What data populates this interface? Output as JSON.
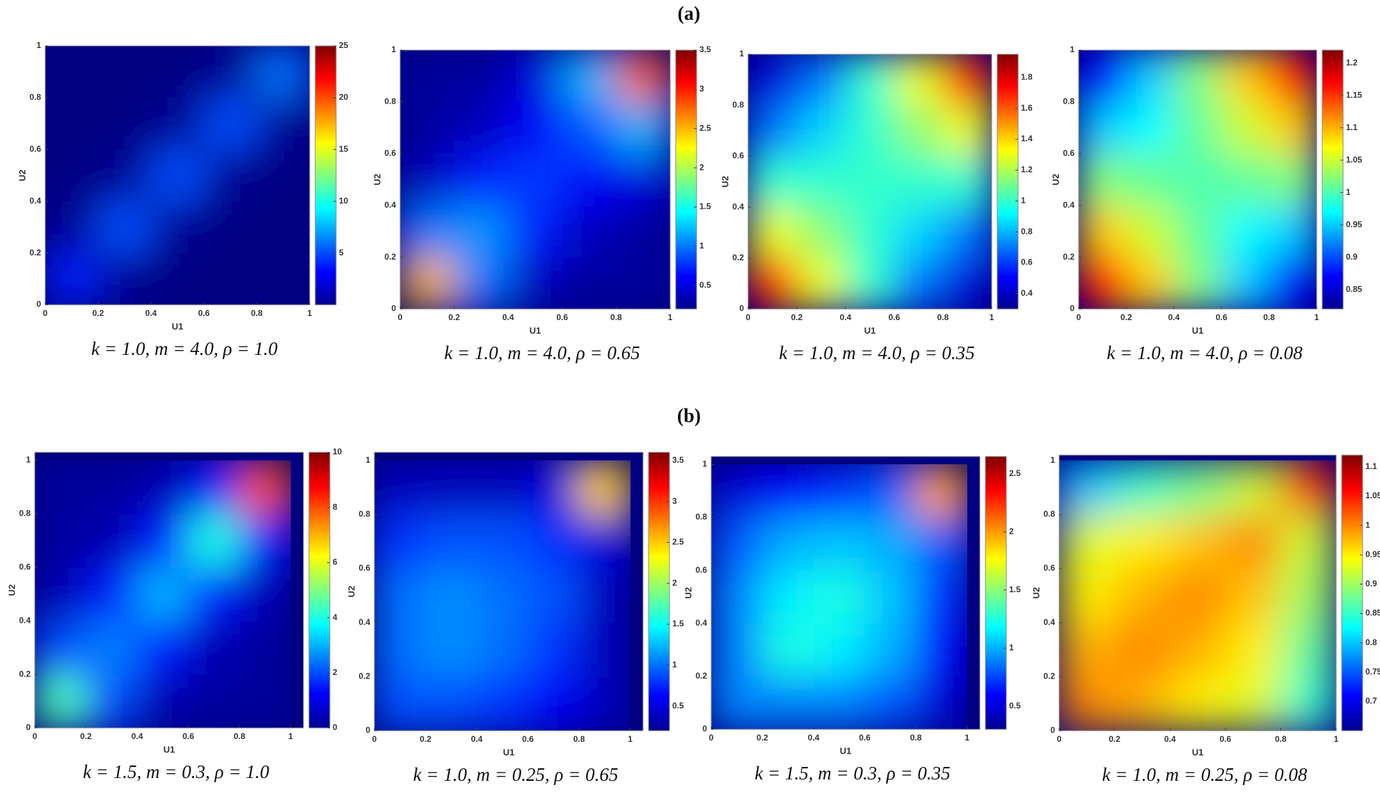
{
  "panel_labels": [
    "(a)",
    "(b)"
  ],
  "chart_data": [
    {
      "type": "heatmap",
      "x_label": "U1",
      "y_label": "U2",
      "caption": "k = 1.0, m = 4.0, ρ = 1.0",
      "xlim": [
        0,
        1
      ],
      "ylim": [
        0,
        1
      ],
      "xticks": [
        0,
        0.2,
        0.4,
        0.6,
        0.8,
        1
      ],
      "yticks": [
        0,
        0.2,
        0.4,
        0.6,
        0.8,
        1
      ],
      "x": [
        0.1,
        0.3,
        0.5,
        0.7,
        0.9
      ],
      "y": [
        0.1,
        0.3,
        0.5,
        0.7,
        0.9
      ],
      "z": [
        [
          4,
          0.5,
          0,
          0,
          0
        ],
        [
          0.5,
          5,
          0.5,
          0,
          0
        ],
        [
          0,
          0.5,
          5,
          0.5,
          0
        ],
        [
          0,
          0,
          0.5,
          5,
          0.5
        ],
        [
          0,
          0,
          0,
          0.5,
          6
        ]
      ],
      "zlim": [
        0,
        25
      ],
      "colorbar_ticks": [
        5,
        10,
        15,
        20,
        25
      ],
      "colormap": "jet"
    },
    {
      "type": "heatmap",
      "x_label": "U1",
      "y_label": "U2",
      "caption": "k = 1.0, m = 4.0, ρ = 0.65",
      "xlim": [
        0,
        1
      ],
      "ylim": [
        0,
        1
      ],
      "xticks": [
        0,
        0.2,
        0.4,
        0.6,
        0.8,
        1
      ],
      "yticks": [
        0,
        0.2,
        0.4,
        0.6,
        0.8,
        1
      ],
      "x": [
        0.1,
        0.3,
        0.5,
        0.7,
        0.9
      ],
      "y": [
        0.1,
        0.3,
        0.5,
        0.7,
        0.9
      ],
      "z": [
        [
          2.5,
          1.0,
          0.4,
          0.3,
          0.3
        ],
        [
          1.0,
          1.1,
          0.7,
          0.4,
          0.3
        ],
        [
          0.4,
          0.7,
          0.8,
          0.6,
          0.5
        ],
        [
          0.3,
          0.4,
          0.6,
          0.9,
          1.2
        ],
        [
          0.3,
          0.3,
          0.5,
          1.2,
          2.8
        ]
      ],
      "zlim": [
        0.2,
        3.5
      ],
      "colorbar_ticks": [
        0.5,
        1,
        1.5,
        2,
        2.5,
        3,
        3.5
      ],
      "colormap": "jet"
    },
    {
      "type": "heatmap",
      "x_label": "U1",
      "y_label": "U2",
      "caption": "k = 1.0, m = 4.0, ρ = 0.35",
      "xlim": [
        0,
        1
      ],
      "ylim": [
        0,
        1
      ],
      "xticks": [
        0,
        0.2,
        0.4,
        0.6,
        0.8,
        1
      ],
      "yticks": [
        0,
        0.2,
        0.4,
        0.6,
        0.8,
        1
      ],
      "x": [
        0.1,
        0.3,
        0.5,
        0.7,
        0.9
      ],
      "y": [
        0.1,
        0.3,
        0.5,
        0.7,
        0.9
      ],
      "z": [
        [
          1.7,
          1.3,
          1.0,
          0.7,
          0.45
        ],
        [
          1.3,
          1.15,
          1.0,
          0.85,
          0.7
        ],
        [
          1.0,
          1.0,
          1.0,
          1.0,
          1.0
        ],
        [
          0.7,
          0.85,
          1.0,
          1.15,
          1.3
        ],
        [
          0.45,
          0.7,
          1.0,
          1.3,
          1.7
        ]
      ],
      "zlim": [
        0.3,
        1.95
      ],
      "colorbar_ticks": [
        0.4,
        0.6,
        0.8,
        1,
        1.2,
        1.4,
        1.6,
        1.8
      ],
      "colormap": "jet"
    },
    {
      "type": "heatmap",
      "x_label": "U1",
      "y_label": "U2",
      "caption": "k = 1.0, m = 4.0, ρ = 0.08",
      "xlim": [
        0,
        1
      ],
      "ylim": [
        0,
        1
      ],
      "xticks": [
        0,
        0.2,
        0.4,
        0.6,
        0.8,
        1
      ],
      "yticks": [
        0,
        0.2,
        0.4,
        0.6,
        0.8,
        1
      ],
      "x": [
        0.1,
        0.3,
        0.5,
        0.7,
        0.9
      ],
      "y": [
        0.1,
        0.3,
        0.5,
        0.7,
        0.9
      ],
      "z": [
        [
          1.17,
          1.09,
          1.02,
          0.95,
          0.87
        ],
        [
          1.09,
          1.05,
          1.01,
          0.97,
          0.95
        ],
        [
          1.02,
          1.01,
          1.0,
          1.01,
          1.02
        ],
        [
          0.95,
          0.97,
          1.01,
          1.05,
          1.09
        ],
        [
          0.87,
          0.95,
          1.02,
          1.09,
          1.17
        ]
      ],
      "zlim": [
        0.82,
        1.22
      ],
      "colorbar_ticks": [
        0.85,
        0.9,
        0.95,
        1,
        1.05,
        1.1,
        1.15,
        1.2
      ],
      "colormap": "jet"
    },
    {
      "type": "heatmap",
      "x_label": "U1",
      "y_label": "U2",
      "caption": "k = 1.5, m = 0.3, ρ = 1.0",
      "xlim": [
        0,
        1.05
      ],
      "ylim": [
        0,
        1.03
      ],
      "xticks": [
        0,
        0.2,
        0.4,
        0.6,
        0.8,
        1
      ],
      "yticks": [
        0,
        0.2,
        0.4,
        0.6,
        0.8,
        1
      ],
      "x": [
        0.1,
        0.3,
        0.5,
        0.7,
        0.9
      ],
      "y": [
        0.1,
        0.3,
        0.5,
        0.7,
        0.9
      ],
      "z": [
        [
          4.5,
          2,
          0.5,
          0.3,
          0.3
        ],
        [
          2,
          2.5,
          1.5,
          0.5,
          0.3
        ],
        [
          0.5,
          1.5,
          3,
          1.5,
          0.5
        ],
        [
          0.3,
          0.5,
          1.5,
          4,
          1.5
        ],
        [
          0.3,
          0.3,
          0.5,
          1.5,
          8
        ]
      ],
      "zlim": [
        0,
        10
      ],
      "colorbar_ticks": [
        0,
        2,
        4,
        6,
        8,
        10
      ],
      "colormap": "jet"
    },
    {
      "type": "heatmap",
      "x_label": "U1",
      "y_label": "U2",
      "caption": "k = 1.0, m = 0.25, ρ = 0.65",
      "xlim": [
        0,
        1.05
      ],
      "ylim": [
        0,
        1.03
      ],
      "xticks": [
        0,
        0.2,
        0.4,
        0.6,
        0.8,
        1
      ],
      "yticks": [
        0,
        0.2,
        0.4,
        0.6,
        0.8,
        1
      ],
      "x": [
        0.1,
        0.3,
        0.5,
        0.7,
        0.9
      ],
      "y": [
        0.1,
        0.3,
        0.5,
        0.7,
        0.9
      ],
      "z": [
        [
          0.9,
          0.9,
          0.8,
          0.6,
          0.4
        ],
        [
          1.0,
          1.1,
          1.0,
          0.8,
          0.4
        ],
        [
          1.0,
          1.1,
          1.0,
          0.9,
          0.4
        ],
        [
          0.8,
          0.9,
          0.9,
          0.8,
          0.5
        ],
        [
          0.4,
          0.4,
          0.4,
          0.5,
          2.5
        ]
      ],
      "zlim": [
        0.2,
        3.6
      ],
      "colorbar_ticks": [
        0.5,
        1,
        1.5,
        2,
        2.5,
        3,
        3.5
      ],
      "colormap": "jet"
    },
    {
      "type": "heatmap",
      "x_label": "U1",
      "y_label": "U2",
      "caption": "k = 1.5, m = 0.3, ρ = 0.35",
      "xlim": [
        0,
        1.05
      ],
      "ylim": [
        0,
        1.03
      ],
      "xticks": [
        0,
        0.2,
        0.4,
        0.6,
        0.8,
        1
      ],
      "yticks": [
        0,
        0.2,
        0.4,
        0.6,
        0.8,
        1
      ],
      "x": [
        0.1,
        0.3,
        0.5,
        0.7,
        0.9
      ],
      "y": [
        0.1,
        0.3,
        0.5,
        0.7,
        0.9
      ],
      "z": [
        [
          0.9,
          0.9,
          0.9,
          0.8,
          0.5
        ],
        [
          0.9,
          1.25,
          1.15,
          1.0,
          0.6
        ],
        [
          0.9,
          1.15,
          1.25,
          1.05,
          0.7
        ],
        [
          0.8,
          1.0,
          1.05,
          1.0,
          0.8
        ],
        [
          0.5,
          0.6,
          0.7,
          0.8,
          2.0
        ]
      ],
      "zlim": [
        0.3,
        2.65
      ],
      "colorbar_ticks": [
        0.5,
        1,
        1.5,
        2,
        2.5
      ],
      "colormap": "jet"
    },
    {
      "type": "heatmap",
      "x_label": "U1",
      "y_label": "U2",
      "caption": "k = 1.0, m = 0.25, ρ = 0.08",
      "xlim": [
        0,
        1
      ],
      "ylim": [
        0,
        1.02
      ],
      "xticks": [
        0,
        0.2,
        0.4,
        0.6,
        0.8,
        1
      ],
      "yticks": [
        0,
        0.2,
        0.4,
        0.6,
        0.8,
        1
      ],
      "x": [
        0.1,
        0.3,
        0.5,
        0.7,
        0.9
      ],
      "y": [
        0.1,
        0.3,
        0.5,
        0.7,
        0.9
      ],
      "z": [
        [
          1.0,
          0.98,
          0.95,
          0.93,
          0.85
        ],
        [
          0.98,
          1.0,
          0.98,
          0.95,
          0.87
        ],
        [
          0.95,
          0.98,
          1.0,
          0.97,
          0.9
        ],
        [
          0.93,
          0.95,
          0.97,
          1.0,
          0.92
        ],
        [
          0.8,
          0.85,
          0.88,
          0.92,
          1.05
        ]
      ],
      "zlim": [
        0.65,
        1.12
      ],
      "colorbar_ticks": [
        0.7,
        0.75,
        0.8,
        0.85,
        0.9,
        0.95,
        1,
        1.05,
        1.1
      ],
      "colormap": "jet"
    }
  ]
}
